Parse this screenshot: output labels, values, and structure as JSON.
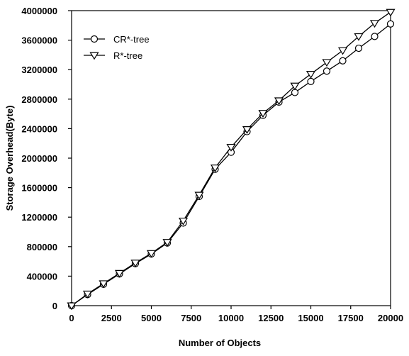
{
  "chart_data": {
    "type": "line",
    "xlabel": "Number of Objects",
    "ylabel": "Storage Overhead(Byte)",
    "xlim": [
      0,
      20000
    ],
    "ylim": [
      0,
      4000000
    ],
    "x_ticks": [
      0,
      2500,
      5000,
      7500,
      10000,
      12500,
      15000,
      17500,
      20000
    ],
    "y_ticks": [
      0,
      400000,
      800000,
      1200000,
      1600000,
      2000000,
      2400000,
      2800000,
      3200000,
      3600000,
      4000000
    ],
    "x_tick_labels": [
      "0",
      "2500",
      "5000",
      "7500",
      "10000",
      "12500",
      "15000",
      "17500",
      "20000"
    ],
    "y_tick_labels": [
      "0",
      "400000",
      "800000",
      "1200000",
      "1600000",
      "2000000",
      "2400000",
      "2800000",
      "3200000",
      "3600000",
      "4000000"
    ],
    "grid": false,
    "legend_position": "top-left",
    "x": [
      0,
      1000,
      2000,
      3000,
      4000,
      5000,
      6000,
      7000,
      8000,
      9000,
      10000,
      11000,
      12000,
      13000,
      14000,
      15000,
      16000,
      17000,
      18000,
      19000,
      20000
    ],
    "series": [
      {
        "name": "CR*-tree",
        "marker": "circle",
        "values": [
          0,
          150000,
          290000,
          430000,
          570000,
          700000,
          850000,
          1120000,
          1480000,
          1850000,
          2080000,
          2360000,
          2580000,
          2760000,
          2890000,
          3040000,
          3180000,
          3320000,
          3490000,
          3650000,
          3820000
        ]
      },
      {
        "name": "R*-tree",
        "marker": "triangle-down",
        "values": [
          0,
          160000,
          300000,
          440000,
          580000,
          710000,
          860000,
          1150000,
          1500000,
          1870000,
          2150000,
          2390000,
          2610000,
          2780000,
          2980000,
          3140000,
          3300000,
          3460000,
          3650000,
          3830000,
          3980000
        ]
      }
    ]
  }
}
